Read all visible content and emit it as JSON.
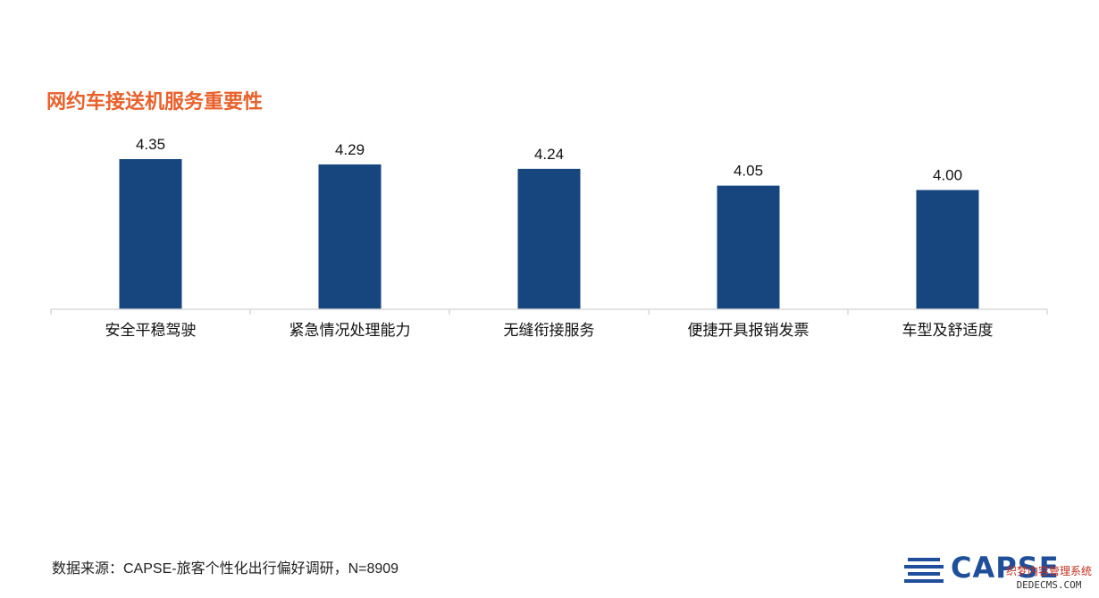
{
  "chart_data": {
    "type": "bar",
    "title": "网约车接送机服务重要性",
    "categories": [
      "安全平稳驾驶",
      "紧急情况处理能力",
      "无缝衔接服务",
      "便捷开具报销发票",
      "车型及舒适度"
    ],
    "values": [
      4.35,
      4.29,
      4.24,
      4.05,
      4.0
    ],
    "value_labels": [
      "4.35",
      "4.29",
      "4.24",
      "4.05",
      "4.00"
    ],
    "xlabel": "",
    "ylabel": "",
    "ylim": [
      2.65,
      4.35
    ],
    "grid": false,
    "legend": "none",
    "bar_color": "#17467F",
    "axis_color": "#D9D9D9",
    "title_color": "#E8612C"
  },
  "footer": {
    "source": "数据来源：CAPSE-旅客个性化出行偏好调研，N=8909",
    "logo_text": "CAPSE",
    "watermark_line1": "织梦内容管理系统",
    "watermark_line2": "DEDECMS.COM"
  }
}
